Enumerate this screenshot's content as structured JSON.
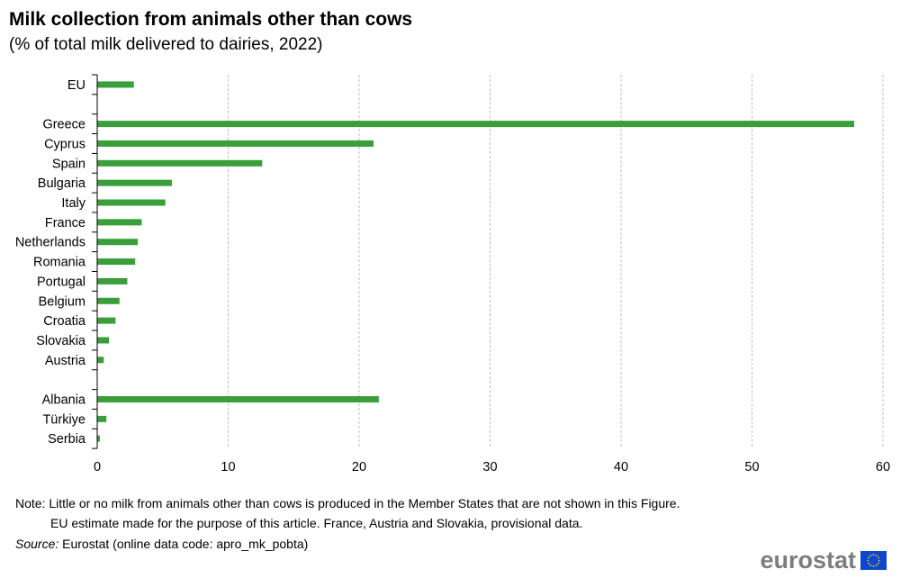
{
  "title": "Milk collection from animals other than cows",
  "subtitle": "(% of total milk delivered to dairies, 2022)",
  "note_line1": "Note: Little or no milk from animals other than cows is produced in the Member States that are not shown in this Figure.",
  "note_line2": "EU estimate made for the purpose of this article. France, Austria and Slovakia, provisional data.",
  "source_label": "Source:",
  "source_text": " Eurostat (online data code: apro_mk_pobta)",
  "logo_text": "eurostat",
  "colors": {
    "bar": "#3a9e3a",
    "grid": "#bfbfbf",
    "axis": "#000000",
    "flag_blue": "#0e47cb",
    "flag_star": "#ffdd00"
  },
  "chart_data": {
    "type": "bar",
    "orientation": "horizontal",
    "categories": [
      "EU",
      "",
      "Greece",
      "Cyprus",
      "Spain",
      "Bulgaria",
      "Italy",
      "France",
      "Netherlands",
      "Romania",
      "Portugal",
      "Belgium",
      "Croatia",
      "Slovakia",
      "Austria",
      "",
      "Albania",
      "Türkiye",
      "Serbia"
    ],
    "values": [
      2.8,
      null,
      57.8,
      21.1,
      12.6,
      5.7,
      5.2,
      3.4,
      3.1,
      2.9,
      2.3,
      1.7,
      1.4,
      0.9,
      0.5,
      null,
      21.5,
      0.7,
      0.2
    ],
    "xlim": [
      0,
      60
    ],
    "xticks": [
      0,
      10,
      20,
      30,
      40,
      50,
      60
    ],
    "grid": "vertical dashed",
    "legend": "none"
  }
}
